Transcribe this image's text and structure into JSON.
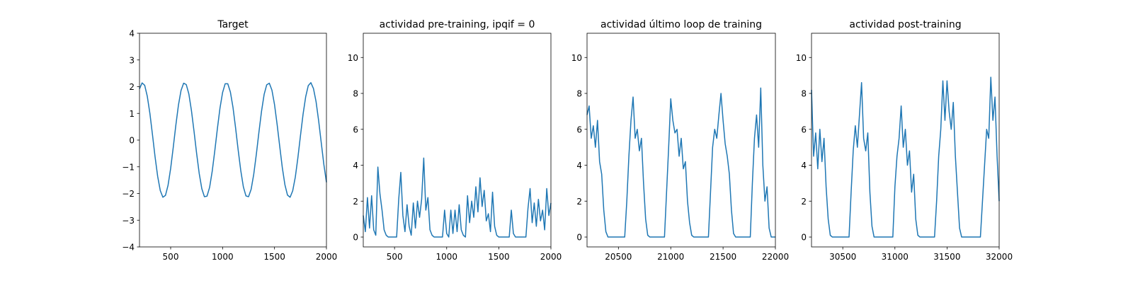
{
  "chart_data": [
    {
      "type": "line",
      "title": "Target",
      "color": "#1f77b4",
      "x": [
        200,
        225,
        250,
        275,
        300,
        325,
        350,
        375,
        400,
        425,
        450,
        475,
        500,
        525,
        550,
        575,
        600,
        625,
        650,
        675,
        700,
        725,
        750,
        775,
        800,
        825,
        850,
        875,
        900,
        925,
        950,
        975,
        1000,
        1025,
        1050,
        1075,
        1100,
        1125,
        1150,
        1175,
        1200,
        1225,
        1250,
        1275,
        1300,
        1325,
        1350,
        1375,
        1400,
        1425,
        1450,
        1475,
        1500,
        1525,
        1550,
        1575,
        1600,
        1625,
        1650,
        1675,
        1700,
        1725,
        1750,
        1775,
        1800,
        1825,
        1850,
        1875,
        1900,
        1925,
        1950,
        1975,
        2000
      ],
      "values": [
        1.92,
        2.14,
        2.05,
        1.64,
        1.0,
        0.2,
        -0.63,
        -1.36,
        -1.89,
        -2.14,
        -2.07,
        -1.69,
        -1.06,
        -0.27,
        0.56,
        1.31,
        1.86,
        2.13,
        2.08,
        1.73,
        1.11,
        0.33,
        -0.5,
        -1.25,
        -1.82,
        -2.12,
        -2.1,
        -1.77,
        -1.17,
        -0.4,
        0.43,
        1.2,
        1.78,
        2.11,
        2.11,
        1.8,
        1.23,
        0.46,
        -0.37,
        -1.14,
        -1.75,
        -2.09,
        -2.12,
        -1.84,
        -1.28,
        -0.53,
        0.3,
        1.08,
        1.71,
        2.07,
        2.13,
        1.87,
        1.33,
        0.59,
        -0.23,
        -1.03,
        -1.67,
        -2.06,
        -2.14,
        -1.9,
        -1.39,
        -0.66,
        0.17,
        0.97,
        1.62,
        2.04,
        2.15,
        1.93,
        1.44,
        0.72,
        -0.1,
        -0.91,
        -1.58
      ],
      "xlim": [
        200,
        2000
      ],
      "xticks": [
        500,
        1000,
        1500,
        2000
      ],
      "ylim": [
        -4,
        4
      ],
      "yticks": [
        {
          "value": -4,
          "label": "−4"
        },
        {
          "value": -3,
          "label": "−3"
        },
        {
          "value": -2,
          "label": "−2"
        },
        {
          "value": -1,
          "label": "−1"
        },
        0,
        1,
        2,
        3,
        4
      ]
    },
    {
      "type": "line",
      "title": "actividad pre-training, ipqif = 0",
      "color": "#1f77b4",
      "x": [
        200,
        220,
        240,
        260,
        280,
        300,
        320,
        340,
        360,
        380,
        400,
        420,
        440,
        460,
        480,
        500,
        520,
        540,
        560,
        580,
        600,
        620,
        640,
        660,
        680,
        700,
        720,
        740,
        760,
        780,
        800,
        820,
        840,
        860,
        880,
        900,
        920,
        940,
        960,
        980,
        1000,
        1020,
        1040,
        1060,
        1080,
        1100,
        1120,
        1140,
        1160,
        1180,
        1200,
        1220,
        1240,
        1260,
        1280,
        1300,
        1320,
        1340,
        1360,
        1380,
        1400,
        1420,
        1440,
        1460,
        1480,
        1500,
        1520,
        1540,
        1560,
        1580,
        1600,
        1620,
        1640,
        1660,
        1680,
        1700,
        1720,
        1740,
        1760,
        1780,
        1800,
        1820,
        1840,
        1860,
        1880,
        1900,
        1920,
        1940,
        1960,
        1980,
        2000
      ],
      "values": [
        1.2,
        0.3,
        2.2,
        0.5,
        2.3,
        0.4,
        0.1,
        3.9,
        2.4,
        1.5,
        0.4,
        0.1,
        0,
        0,
        0,
        0,
        0,
        2.1,
        3.6,
        1.2,
        0.3,
        1.8,
        0.6,
        0.1,
        1.9,
        0.5,
        2.0,
        1.1,
        2.1,
        4.4,
        1.5,
        2.2,
        0.4,
        0.1,
        0,
        0,
        0,
        0,
        0,
        1.5,
        0.2,
        0,
        1.5,
        0.2,
        1.5,
        0.3,
        1.8,
        0.4,
        0.1,
        0,
        2.3,
        0.8,
        2.0,
        1.1,
        2.8,
        1.4,
        3.3,
        1.7,
        2.6,
        0.9,
        1.3,
        0.3,
        2.5,
        0.6,
        0.1,
        0,
        0,
        0,
        0,
        0,
        0,
        1.5,
        0.2,
        0,
        0,
        0,
        0,
        0,
        0,
        1.6,
        2.7,
        0.8,
        1.9,
        0.6,
        2.1,
        0.9,
        1.5,
        0.4,
        2.7,
        1.2,
        1.9
      ],
      "xlim": [
        200,
        2000
      ],
      "xticks": [
        500,
        1000,
        1500,
        2000
      ],
      "ylim": [
        -0.55,
        11.35
      ],
      "yticks": [
        0,
        2,
        4,
        6,
        8,
        10
      ]
    },
    {
      "type": "line",
      "title": "actividad último loop de training",
      "color": "#1f77b4",
      "x": [
        20200,
        20220,
        20240,
        20260,
        20280,
        20300,
        20320,
        20340,
        20360,
        20380,
        20400,
        20420,
        20440,
        20460,
        20480,
        20500,
        20520,
        20540,
        20560,
        20580,
        20600,
        20620,
        20640,
        20660,
        20680,
        20700,
        20720,
        20740,
        20760,
        20780,
        20800,
        20820,
        20840,
        20860,
        20880,
        20900,
        20920,
        20940,
        20960,
        20980,
        21000,
        21020,
        21040,
        21060,
        21080,
        21100,
        21120,
        21140,
        21160,
        21180,
        21200,
        21220,
        21240,
        21260,
        21280,
        21300,
        21320,
        21340,
        21360,
        21380,
        21400,
        21420,
        21440,
        21460,
        21480,
        21500,
        21520,
        21540,
        21560,
        21580,
        21600,
        21620,
        21640,
        21660,
        21680,
        21700,
        21720,
        21740,
        21760,
        21780,
        21800,
        21820,
        21840,
        21860,
        21880,
        21900,
        21920,
        21940,
        21960,
        21980,
        22000
      ],
      "values": [
        6.8,
        7.3,
        5.5,
        6.2,
        5.0,
        6.5,
        4.2,
        3.5,
        1.5,
        0.3,
        0,
        0,
        0,
        0,
        0,
        0,
        0,
        0,
        0,
        2.0,
        4.5,
        6.5,
        7.8,
        5.5,
        6.0,
        4.8,
        5.5,
        3.0,
        1.0,
        0.1,
        0,
        0,
        0,
        0,
        0,
        0,
        0,
        0,
        2.5,
        5.0,
        7.7,
        6.5,
        5.8,
        6.0,
        4.5,
        5.5,
        3.8,
        4.2,
        2.0,
        0.8,
        0.1,
        0,
        0,
        0,
        0,
        0,
        0,
        0,
        0,
        2.5,
        5.0,
        6.0,
        5.5,
        6.8,
        8.0,
        6.5,
        5.2,
        4.5,
        3.5,
        1.5,
        0.2,
        0,
        0,
        0,
        0,
        0,
        0,
        0,
        0,
        3.0,
        5.5,
        6.8,
        5.0,
        8.3,
        4.0,
        2.0,
        2.8,
        0.5,
        0,
        0,
        0
      ],
      "xlim": [
        20200,
        22000
      ],
      "xticks": [
        20500,
        21000,
        21500,
        22000
      ],
      "ylim": [
        -0.55,
        11.35
      ],
      "yticks": [
        0,
        2,
        4,
        6,
        8,
        10
      ]
    },
    {
      "type": "line",
      "title": "actividad post-training",
      "color": "#1f77b4",
      "x": [
        30200,
        30220,
        30240,
        30260,
        30280,
        30300,
        30320,
        30340,
        30360,
        30380,
        30400,
        30420,
        30440,
        30460,
        30480,
        30500,
        30520,
        30540,
        30560,
        30580,
        30600,
        30620,
        30640,
        30660,
        30680,
        30700,
        30720,
        30740,
        30760,
        30780,
        30800,
        30820,
        30840,
        30860,
        30880,
        30900,
        30920,
        30940,
        30960,
        30980,
        31000,
        31020,
        31040,
        31060,
        31080,
        31100,
        31120,
        31140,
        31160,
        31180,
        31200,
        31220,
        31240,
        31260,
        31280,
        31300,
        31320,
        31340,
        31360,
        31380,
        31400,
        31420,
        31440,
        31460,
        31480,
        31500,
        31520,
        31540,
        31560,
        31580,
        31600,
        31620,
        31640,
        31660,
        31680,
        31700,
        31720,
        31740,
        31760,
        31780,
        31800,
        31820,
        31840,
        31860,
        31880,
        31900,
        31920,
        31940,
        31960,
        31980,
        32000
      ],
      "values": [
        8.2,
        4.5,
        5.8,
        3.8,
        6.0,
        4.2,
        5.5,
        2.8,
        1.0,
        0.1,
        0,
        0,
        0,
        0,
        0,
        0,
        0,
        0,
        0,
        2.5,
        4.8,
        6.2,
        5.0,
        6.8,
        8.6,
        5.5,
        4.8,
        5.8,
        2.5,
        0.6,
        0,
        0,
        0,
        0,
        0,
        0,
        0,
        0,
        0,
        0,
        2.8,
        4.5,
        5.5,
        7.3,
        5.0,
        6.0,
        4.0,
        4.8,
        2.5,
        3.5,
        1.0,
        0.1,
        0,
        0,
        0,
        0,
        0,
        0,
        0,
        0,
        2.0,
        4.5,
        6.0,
        8.7,
        6.5,
        8.7,
        7.0,
        6.0,
        7.5,
        4.5,
        2.5,
        0.5,
        0,
        0,
        0,
        0,
        0,
        0,
        0,
        0,
        0,
        0,
        2.0,
        4.0,
        6.0,
        5.5,
        8.9,
        6.5,
        7.8,
        4.5,
        2.0
      ],
      "xlim": [
        30200,
        32000
      ],
      "xticks": [
        30500,
        31000,
        31500,
        32000
      ],
      "ylim": [
        -0.55,
        11.35
      ],
      "yticks": [
        0,
        2,
        4,
        6,
        8,
        10
      ]
    }
  ]
}
